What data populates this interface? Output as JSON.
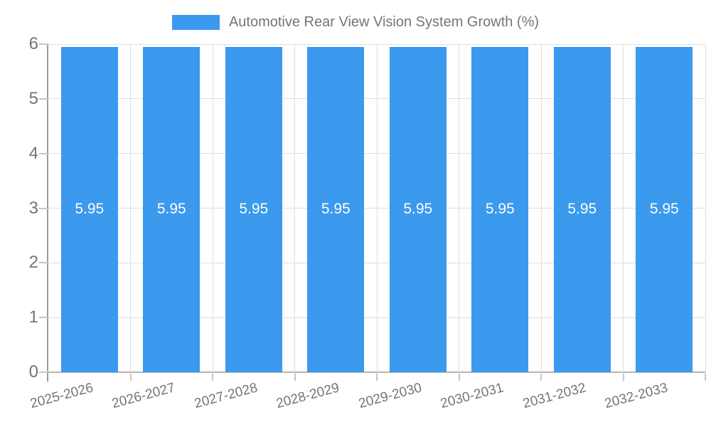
{
  "legend": {
    "label": "Automotive Rear View Vision System Growth (%)"
  },
  "chart_data": {
    "type": "bar",
    "title": "Automotive Rear View Vision System Growth (%)",
    "categories": [
      "2025-2026",
      "2026-2027",
      "2027-2028",
      "2028-2029",
      "2029-2030",
      "2030-2031",
      "2031-2032",
      "2032-2033"
    ],
    "values": [
      5.95,
      5.95,
      5.95,
      5.95,
      5.95,
      5.95,
      5.95,
      5.95
    ],
    "value_labels": [
      "5.95",
      "5.95",
      "5.95",
      "5.95",
      "5.95",
      "5.95",
      "5.95",
      "5.95"
    ],
    "xlabel": "",
    "ylabel": "",
    "ylim": [
      0,
      6
    ],
    "yticks": [
      0,
      1,
      2,
      3,
      4,
      5,
      6
    ],
    "grid": true,
    "legend_position": "top"
  },
  "colors": {
    "bar": "#3b99ee",
    "value_label": "#ffffff",
    "axis_text": "#757575",
    "gridline": "#dedede",
    "axis_line": "#a3a3a3"
  }
}
